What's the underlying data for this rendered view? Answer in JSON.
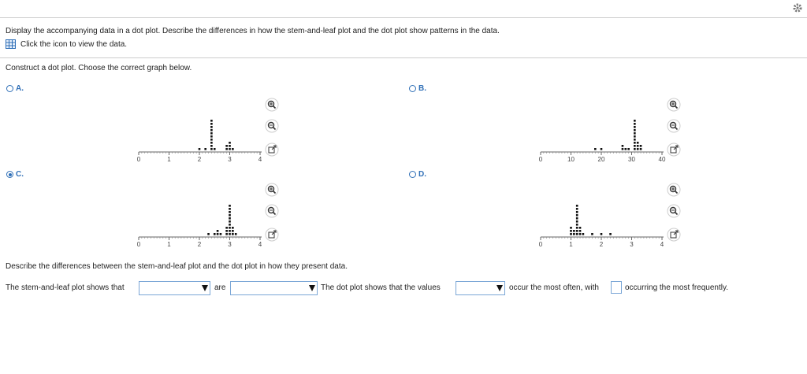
{
  "question": {
    "instruction": "Display the accompanying data in a dot plot. Describe the differences in how the stem-and-leaf plot and the dot plot show patterns in the data.",
    "data_link": "Click the icon to view the data.",
    "prompt": "Construct a dot plot. Choose the correct graph below.",
    "options": [
      {
        "letter": "A.",
        "selected": false,
        "xlim": [
          0,
          4
        ],
        "ticks": [
          0,
          1,
          2,
          3,
          4
        ],
        "dots": [
          {
            "value": 2.0,
            "count": 1
          },
          {
            "value": 2.2,
            "count": 1
          },
          {
            "value": 2.4,
            "count": 10
          },
          {
            "value": 2.5,
            "count": 1
          },
          {
            "value": 2.9,
            "count": 2
          },
          {
            "value": 3.0,
            "count": 3
          },
          {
            "value": 3.1,
            "count": 1
          }
        ]
      },
      {
        "letter": "B.",
        "selected": false,
        "xlim": [
          0,
          40
        ],
        "ticks": [
          0,
          10,
          20,
          30,
          40
        ],
        "dots": [
          {
            "value": 18,
            "count": 1
          },
          {
            "value": 20,
            "count": 1
          },
          {
            "value": 27,
            "count": 2
          },
          {
            "value": 28,
            "count": 1
          },
          {
            "value": 29,
            "count": 1
          },
          {
            "value": 31,
            "count": 10
          },
          {
            "value": 32,
            "count": 3
          },
          {
            "value": 33,
            "count": 2
          }
        ]
      },
      {
        "letter": "C.",
        "selected": true,
        "xlim": [
          0,
          4
        ],
        "ticks": [
          0,
          1,
          2,
          3,
          4
        ],
        "dots": [
          {
            "value": 2.3,
            "count": 1
          },
          {
            "value": 2.5,
            "count": 1
          },
          {
            "value": 2.6,
            "count": 2
          },
          {
            "value": 2.7,
            "count": 1
          },
          {
            "value": 2.9,
            "count": 3
          },
          {
            "value": 3.0,
            "count": 10
          },
          {
            "value": 3.1,
            "count": 3
          },
          {
            "value": 3.2,
            "count": 1
          }
        ]
      },
      {
        "letter": "D.",
        "selected": false,
        "xlim": [
          0,
          4
        ],
        "ticks": [
          0,
          1,
          2,
          3,
          4
        ],
        "dots": [
          {
            "value": 1.0,
            "count": 3
          },
          {
            "value": 1.1,
            "count": 2
          },
          {
            "value": 1.2,
            "count": 10
          },
          {
            "value": 1.3,
            "count": 3
          },
          {
            "value": 1.4,
            "count": 1
          },
          {
            "value": 1.7,
            "count": 1
          },
          {
            "value": 2.0,
            "count": 1
          },
          {
            "value": 2.3,
            "count": 1
          }
        ]
      }
    ],
    "describe": "Describe the differences between the stem-and-leaf plot and the dot plot in how they present data.",
    "sentence": [
      "The stem-and-leaf plot shows that",
      "are",
      "The dot plot shows that the values",
      "occur the most often, with",
      "occurring the most frequently."
    ]
  }
}
